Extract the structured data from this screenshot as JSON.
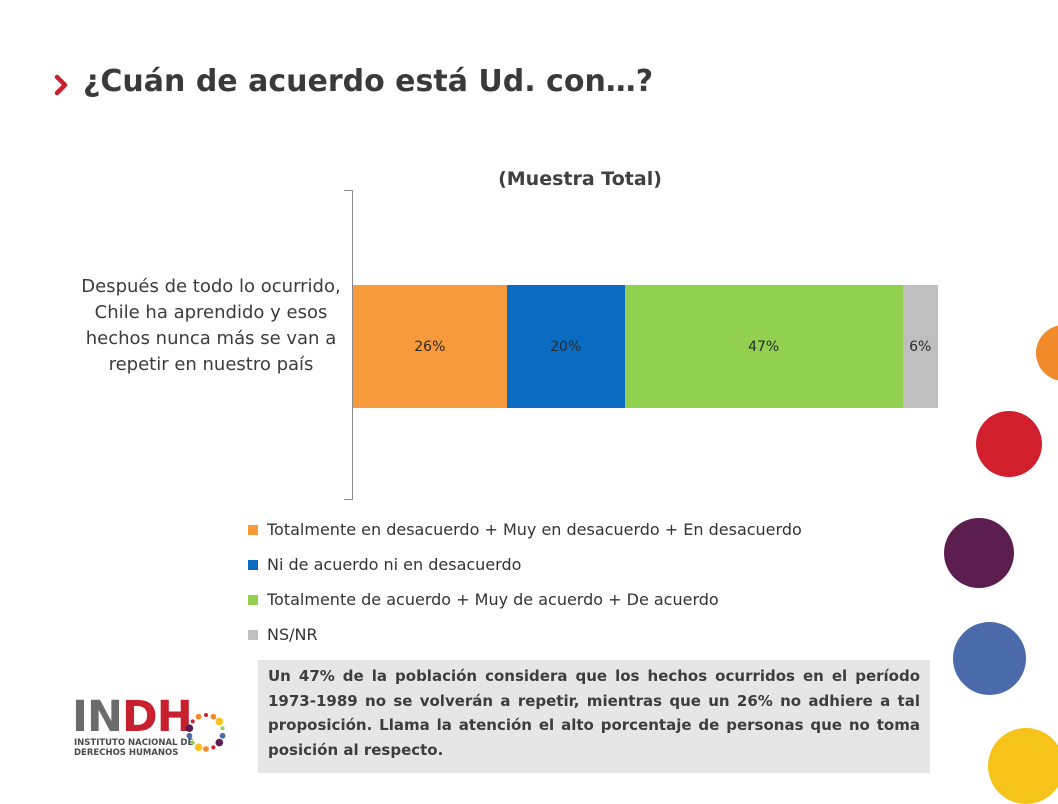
{
  "title": "¿Cuán de acuerdo está Ud. con…?",
  "colors": {
    "accent": "#c8202f",
    "title": "#3a3a3a",
    "deco_orange": "#f08a2a",
    "deco_red": "#d21f2e",
    "deco_purple": "#5c1d4f",
    "deco_blue": "#4a6aab",
    "deco_yellow": "#f6c31a"
  },
  "chart_data": {
    "type": "bar",
    "orientation": "horizontal",
    "stacked": true,
    "title": "(Muestra Total)",
    "categories": [
      "Después de todo lo ocurrido, Chile ha aprendido y esos hechos nunca más se van a repetir en nuestro país"
    ],
    "series": [
      {
        "name": "Totalmente en desacuerdo + Muy en desacuerdo + En desacuerdo",
        "values": [
          26
        ],
        "label": "26%",
        "color": "#f79a3b"
      },
      {
        "name": "Ni de acuerdo ni en desacuerdo",
        "values": [
          20
        ],
        "label": "20%",
        "color": "#0a6cc0"
      },
      {
        "name": "Totalmente de acuerdo + Muy de acuerdo + De acuerdo",
        "values": [
          47
        ],
        "label": "47%",
        "color": "#92d050"
      },
      {
        "name": "NS/NR",
        "values": [
          6
        ],
        "label": "6%",
        "color": "#bfbfbf"
      }
    ],
    "legend_position": "bottom",
    "grid": false
  },
  "note": "Un 47% de la población considera que los hechos ocurridos en el período 1973-1989 no se volverán a repetir, mientras que un 26% no adhiere a tal proposición. Llama la atención el alto porcentaje de personas que no toma posición al respecto.",
  "logo": {
    "text_prefix": "IN",
    "text_suffix": "DH",
    "subtitle_line1": "INSTITUTO NACIONAL DE",
    "subtitle_line2": "DERECHOS HUMANOS",
    "prefix_color": "#6b6b6b",
    "suffix_color": "#c8202f"
  }
}
